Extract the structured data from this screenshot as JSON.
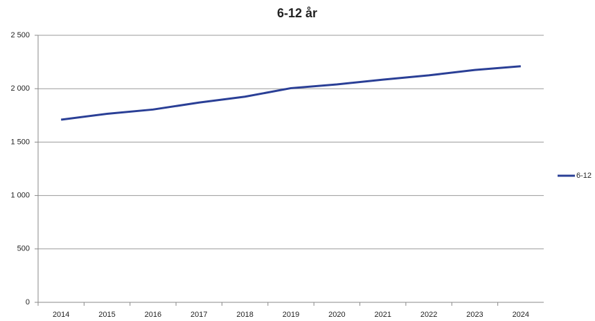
{
  "chart_data": {
    "type": "line",
    "title": "6-12 år",
    "categories": [
      "2014",
      "2015",
      "2016",
      "2017",
      "2018",
      "2019",
      "2020",
      "2021",
      "2022",
      "2023",
      "2024"
    ],
    "series": [
      {
        "name": "6-12",
        "color": "#2a3f96",
        "values": [
          1710,
          1765,
          1805,
          1870,
          1925,
          2005,
          2040,
          2085,
          2125,
          2175,
          2210
        ]
      }
    ],
    "ylim": [
      0,
      2500
    ],
    "yticks": [
      0,
      500,
      {
        "value": 1000,
        "label": "1 000"
      },
      {
        "value": 1500,
        "label": "1 500"
      },
      {
        "value": 2000,
        "label": "2 000"
      },
      {
        "value": 2500,
        "label": "2 500"
      }
    ],
    "grid": true,
    "legend": "right"
  }
}
